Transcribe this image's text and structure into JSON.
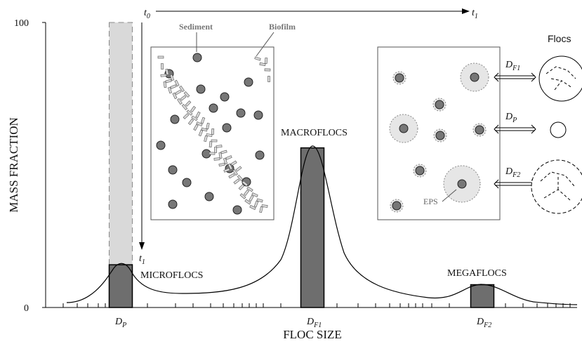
{
  "chart_data": {
    "type": "bar",
    "ylabel": "MASS FRACTION",
    "xlabel": "FLOC SIZE",
    "ylim": [
      0,
      100
    ],
    "yticks": [
      0,
      100
    ],
    "categories": [
      {
        "base": "D",
        "sub": "P"
      },
      {
        "base": "D",
        "sub": "F1"
      },
      {
        "base": "D",
        "sub": "F2"
      }
    ],
    "values": [
      15,
      56,
      8
    ],
    "bar_labels": [
      "MICROFLOCS",
      "MACROFLOCS",
      "MEGAFLOCS"
    ],
    "color": "#6e6e6e",
    "dashed_values": [
      100,
      null,
      null
    ],
    "dashed_color": "#d9d9d9",
    "times": [
      {
        "base": "t",
        "sub": "0"
      },
      {
        "base": "t",
        "sub": "1"
      },
      {
        "base": "t",
        "sub": "1"
      }
    ],
    "inset_left": {
      "labels": [
        "Sediment",
        "Biofilm"
      ]
    },
    "inset_right": {
      "label": "EPS",
      "sizes": [
        {
          "base": "D",
          "sub": "F1"
        },
        {
          "base": "D",
          "sub": "P"
        },
        {
          "base": "D",
          "sub": "F2"
        }
      ],
      "title": "Flocs"
    }
  }
}
